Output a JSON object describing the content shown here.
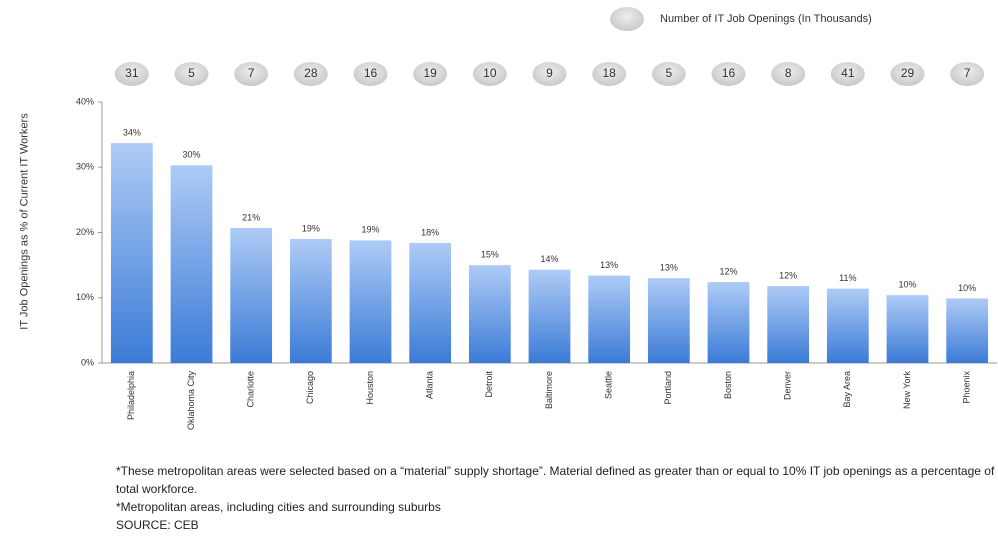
{
  "chart_data": {
    "type": "bar",
    "y_label": "IT Job Openings as % of Current IT Workers",
    "categories": [
      "Philadelphia",
      "Oklahoma City",
      "Charlotte",
      "Chicago",
      "Houston",
      "Atlanta",
      "Detroit",
      "Baltimore",
      "Seattle",
      "Portland",
      "Boston",
      "Denver",
      "Bay Area",
      "New York",
      "Phoenix"
    ],
    "values": [
      33.7,
      30.3,
      20.7,
      19.0,
      18.8,
      18.4,
      15.0,
      14.3,
      13.4,
      13.0,
      12.4,
      11.8,
      11.4,
      10.4,
      9.9
    ],
    "value_labels": [
      "34%",
      "30%",
      "21%",
      "19%",
      "19%",
      "18%",
      "15%",
      "14%",
      "13%",
      "13%",
      "12%",
      "12%",
      "11%",
      "10%",
      "10%"
    ],
    "color": "#5b93e0",
    "ylim": [
      0,
      40
    ],
    "yticks": [
      {
        "value": 0,
        "label": "0%"
      },
      {
        "value": 10,
        "label": "10%"
      },
      {
        "value": 20,
        "label": "20%"
      },
      {
        "value": 30,
        "label": "30%"
      },
      {
        "value": 40,
        "label": "40%"
      }
    ],
    "bubbles": {
      "name": "Number of IT Job Openings (In Thousands)",
      "values": [
        31,
        5,
        7,
        28,
        16,
        19,
        10,
        9,
        18,
        5,
        16,
        8,
        41,
        29,
        7
      ]
    },
    "notes": [
      "*These metropolitan areas were selected based on a “material” supply shortage”. Material defined as greater than or equal to 10% IT job openings as a percentage of total workforce.",
      "*Metropolitan areas, including cities and surrounding suburbs",
      "SOURCE: CEB"
    ]
  }
}
